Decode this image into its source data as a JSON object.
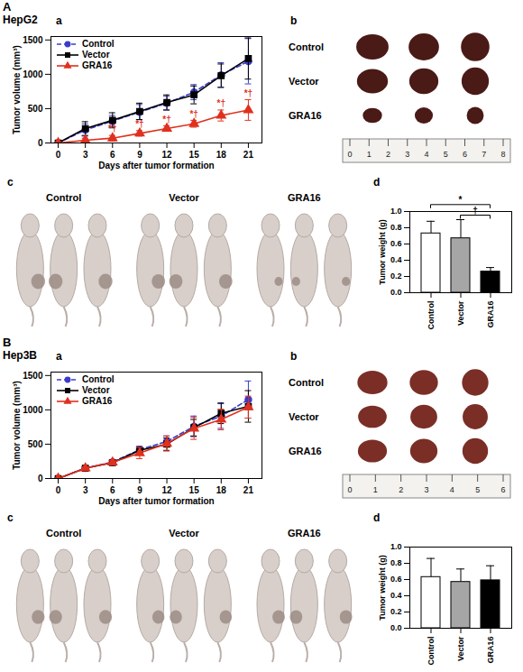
{
  "groups": [
    {
      "letter": "A",
      "title": "HepG2"
    },
    {
      "letter": "B",
      "title": "Hep3B"
    }
  ],
  "chart_data": [
    {
      "group": "A",
      "panel": "a",
      "type": "line",
      "x_label": "Days after tumor formation",
      "y_label": "Tumor volume (mm³)",
      "x": [
        0,
        3,
        6,
        9,
        12,
        15,
        18,
        21
      ],
      "xlim": [
        -0.8,
        22.5
      ],
      "xticks": [
        0,
        3,
        6,
        9,
        12,
        15,
        18,
        21
      ],
      "ylim": [
        0,
        1550
      ],
      "yticks": [
        0,
        500,
        1000,
        1500
      ],
      "legend": "top-left",
      "series": [
        {
          "name": "Control",
          "color": "#3c3ccc",
          "marker": "circle",
          "line_style": "dashed",
          "values": [
            0,
            190,
            320,
            450,
            580,
            740,
            990,
            1190
          ],
          "errors": [
            0,
            90,
            80,
            110,
            100,
            110,
            180,
            330
          ]
        },
        {
          "name": "Vector",
          "color": "#000000",
          "marker": "square",
          "line_style": "solid",
          "values": [
            0,
            210,
            330,
            460,
            590,
            700,
            980,
            1230
          ],
          "errors": [
            0,
            100,
            110,
            120,
            110,
            130,
            170,
            300
          ]
        },
        {
          "name": "GRA16",
          "color": "#e0301e",
          "marker": "triangle",
          "line_style": "solid",
          "values": [
            0,
            40,
            70,
            140,
            210,
            280,
            400,
            480
          ],
          "errors": [
            0,
            30,
            40,
            40,
            40,
            50,
            80,
            150
          ]
        }
      ],
      "annotations": [
        {
          "x": 6,
          "series": "GRA16",
          "text": "*†"
        },
        {
          "x": 9,
          "series": "GRA16",
          "text": "*†"
        },
        {
          "x": 12,
          "series": "GRA16",
          "text": "*†"
        },
        {
          "x": 15,
          "series": "GRA16",
          "text": "*†"
        },
        {
          "x": 18,
          "series": "GRA16",
          "text": "*†"
        },
        {
          "x": 21,
          "series": "GRA16",
          "text": "*†"
        }
      ]
    },
    {
      "group": "A",
      "panel": "d",
      "type": "bar",
      "y_label": "Tumor weight (g)",
      "categories": [
        "Control",
        "Vector",
        "GRA16"
      ],
      "values": [
        0.73,
        0.67,
        0.26
      ],
      "errors": [
        0.15,
        0.23,
        0.05
      ],
      "colors": [
        "#ffffff",
        "#a6a6a6",
        "#000000"
      ],
      "ylim": [
        0,
        1
      ],
      "yticks": [
        {
          "value": 0,
          "label": "0.0"
        },
        0.2,
        0.4,
        0.6,
        0.8,
        {
          "value": 1,
          "label": "1.0"
        }
      ],
      "significance": [
        {
          "from": "Vector",
          "to": "GRA16",
          "text": "†"
        },
        {
          "from": "Control",
          "to": "GRA16",
          "text": "*"
        }
      ]
    },
    {
      "group": "B",
      "panel": "a",
      "type": "line",
      "x_label": "Days after tumor formation",
      "y_label": "Tumor volume (mm³)",
      "x": [
        0,
        3,
        6,
        9,
        12,
        15,
        18,
        21
      ],
      "xlim": [
        -0.8,
        22.5
      ],
      "xticks": [
        0,
        3,
        6,
        9,
        12,
        15,
        18,
        21
      ],
      "ylim": [
        0,
        1550
      ],
      "yticks": [
        0,
        500,
        1000,
        1500
      ],
      "legend": "top-left",
      "series": [
        {
          "name": "Control",
          "color": "#3c3ccc",
          "marker": "circle",
          "line_style": "dashed",
          "values": [
            0,
            150,
            240,
            420,
            540,
            760,
            910,
            1150
          ],
          "errors": [
            0,
            20,
            30,
            50,
            80,
            150,
            180,
            270
          ]
        },
        {
          "name": "Vector",
          "color": "#000000",
          "marker": "square",
          "line_style": "solid",
          "values": [
            0,
            150,
            230,
            410,
            500,
            740,
            950,
            1050
          ],
          "errors": [
            0,
            20,
            30,
            40,
            90,
            120,
            150,
            230
          ]
        },
        {
          "name": "GRA16",
          "color": "#e0301e",
          "marker": "triangle",
          "line_style": "solid",
          "values": [
            0,
            150,
            235,
            370,
            510,
            730,
            860,
            1040
          ],
          "errors": [
            0,
            20,
            30,
            80,
            110,
            160,
            150,
            160
          ]
        }
      ]
    },
    {
      "group": "B",
      "panel": "d",
      "type": "bar",
      "y_label": "Tumor weight (g)",
      "categories": [
        "Control",
        "Vector",
        "GRA16"
      ],
      "values": [
        0.63,
        0.57,
        0.59
      ],
      "errors": [
        0.23,
        0.16,
        0.18
      ],
      "colors": [
        "#ffffff",
        "#a6a6a6",
        "#000000"
      ],
      "ylim": [
        0,
        1
      ],
      "yticks": [
        {
          "value": 0,
          "label": "0.0"
        },
        0.2,
        0.4,
        0.6,
        0.8,
        {
          "value": 1,
          "label": "1.0"
        }
      ]
    }
  ],
  "photo_panels": [
    {
      "group": "A",
      "panel": "b",
      "type": "tumors",
      "labels": [
        "Control",
        "Vector",
        "GRA16"
      ],
      "ruler": [
        0,
        1,
        2,
        3,
        4,
        5,
        6,
        7,
        8
      ]
    },
    {
      "group": "A",
      "panel": "c",
      "type": "mice",
      "labels": [
        "Control",
        "Vector",
        "GRA16"
      ]
    },
    {
      "group": "B",
      "panel": "b",
      "type": "tumors",
      "labels": [
        "Control",
        "Vector",
        "GRA16"
      ],
      "ruler": [
        0,
        1,
        2,
        3,
        4,
        5,
        6
      ]
    },
    {
      "group": "B",
      "panel": "c",
      "type": "mice",
      "labels": [
        "Control",
        "Vector",
        "GRA16"
      ]
    }
  ]
}
